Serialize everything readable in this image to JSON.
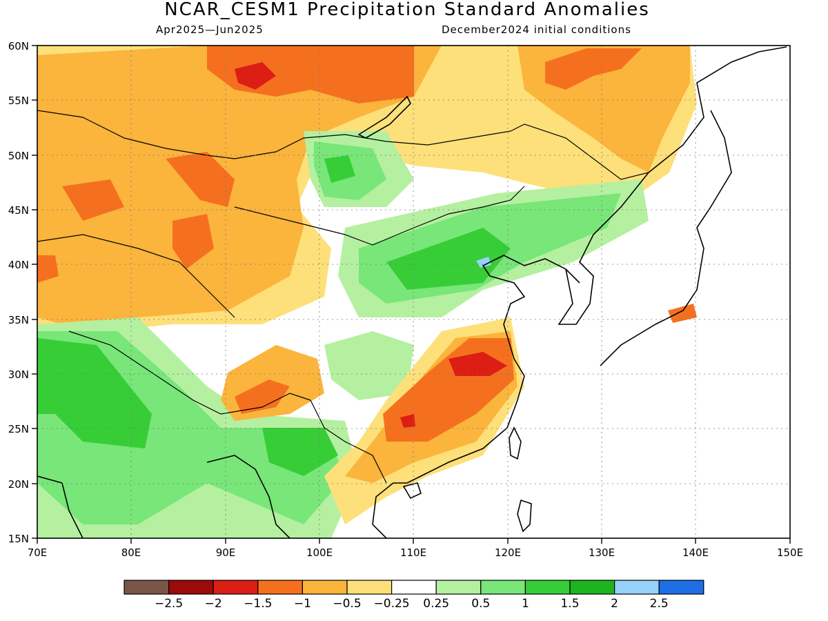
{
  "title": "NCAR_CESM1 Precipitation Standard Anomalies",
  "subtitle_left": "Apr2025—Jun2025",
  "subtitle_right": "December2024 initial conditions",
  "lat_labels": [
    "60N",
    "55N",
    "50N",
    "45N",
    "40N",
    "35N",
    "30N",
    "25N",
    "20N",
    "15N"
  ],
  "lon_labels": [
    "70E",
    "80E",
    "90E",
    "100E",
    "110E",
    "120E",
    "130E",
    "140E",
    "150E"
  ],
  "colorbar": {
    "colors": [
      "#7a5548",
      "#9c0a0a",
      "#dc1e14",
      "#f5701e",
      "#fbb43c",
      "#fde07a",
      "#ffffff",
      "#b4f0a0",
      "#78e678",
      "#37cd37",
      "#1eb41e",
      "#96d2fa",
      "#1e6ee6"
    ],
    "labels": [
      "−2.5",
      "−2",
      "−1.5",
      "−1",
      "−0.5",
      "−0.25",
      "0.25",
      "0.5",
      "1",
      "1.5",
      "2",
      "2.5"
    ]
  },
  "colors": {
    "strong_dry": "#dc1e14",
    "dry": "#f5701e",
    "mod_dry": "#fbb43c",
    "weak_dry": "#fde07a",
    "weak_wet": "#b4f0a0",
    "wet": "#78e678",
    "mod_wet": "#37cd37",
    "strong_wet": "#1eb41e",
    "very_wet": "#96d2fa"
  }
}
